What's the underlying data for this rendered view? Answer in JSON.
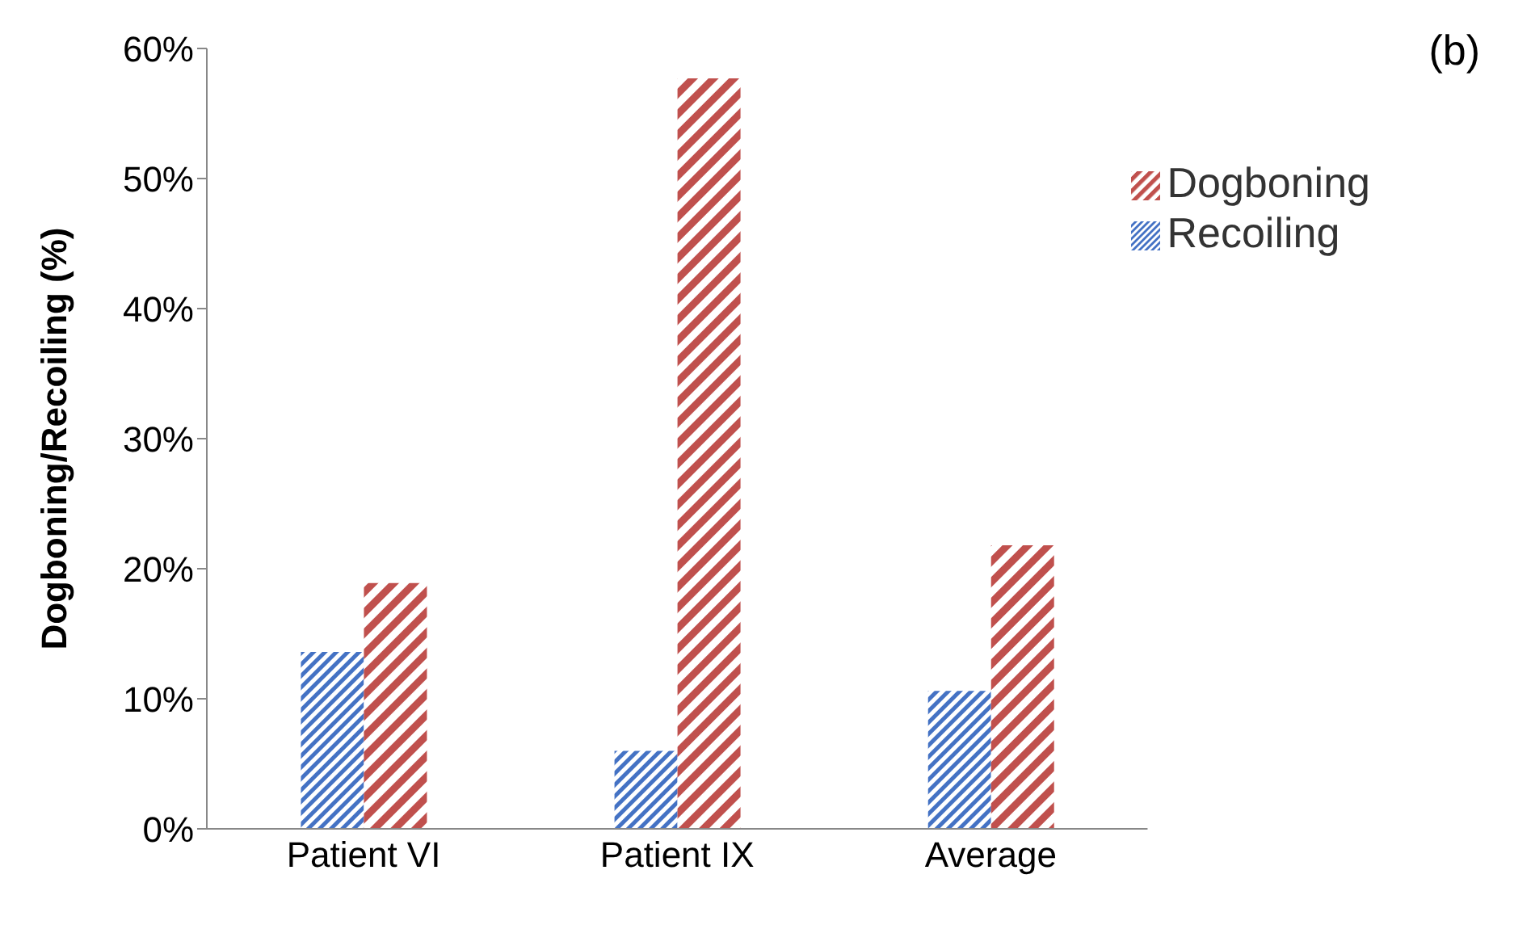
{
  "chart_data": {
    "type": "bar",
    "ylabel": "Dogboning/Recoiling (%)",
    "annotations": [
      "(b)"
    ],
    "categories": [
      "Patient VI",
      "Patient IX",
      "Average"
    ],
    "series": [
      {
        "name": "Recoiling",
        "color": "#4472c4",
        "values": [
          13.6,
          6.0,
          10.6
        ]
      },
      {
        "name": "Dogboning",
        "color": "#c0504d",
        "values": [
          18.9,
          57.7,
          21.8
        ]
      }
    ],
    "ylim": [
      0,
      60
    ],
    "yticks": [
      {
        "value": 0,
        "label": "0%"
      },
      {
        "value": 10,
        "label": "10%"
      },
      {
        "value": 20,
        "label": "20%"
      },
      {
        "value": 30,
        "label": "30%"
      },
      {
        "value": 40,
        "label": "40%"
      },
      {
        "value": 50,
        "label": "50%"
      },
      {
        "value": 60,
        "label": "60%"
      }
    ],
    "grid": false,
    "legend": "top right"
  }
}
